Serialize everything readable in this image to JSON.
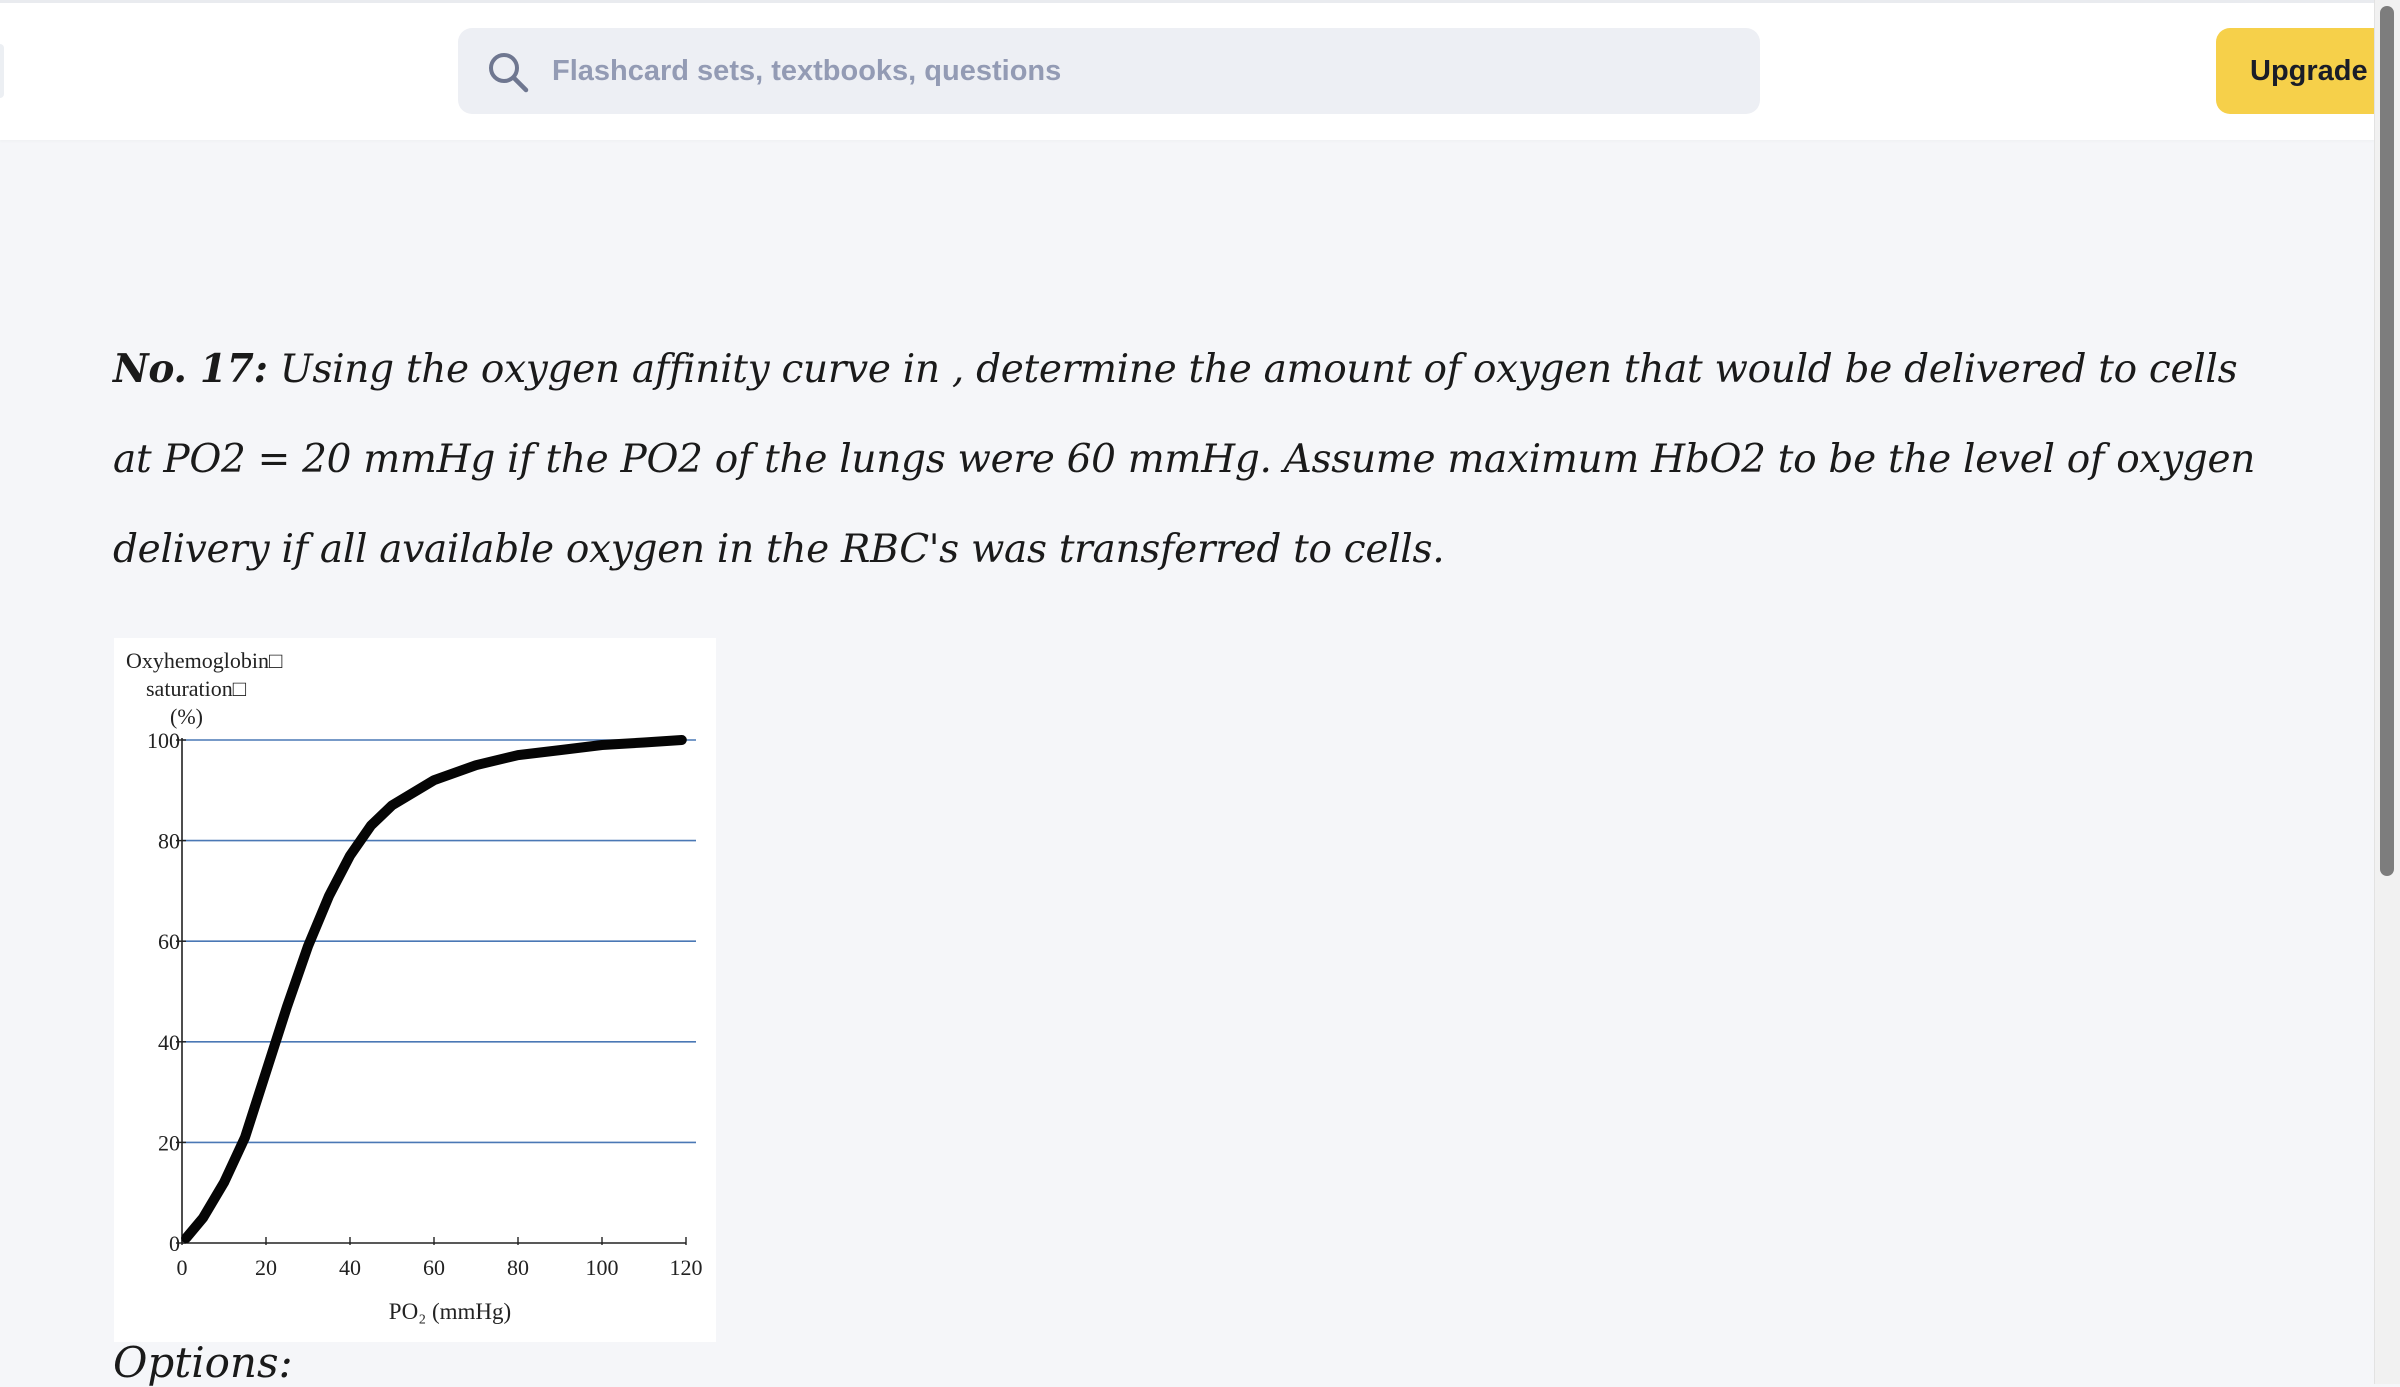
{
  "header": {
    "search": {
      "placeholder": "Flashcard sets, textbooks, questions",
      "icon": "search-icon"
    },
    "upgrade_label": "Upgrade",
    "upgrade_color": "#f6d04a"
  },
  "question": {
    "number_label": "No. 17:",
    "text": "Using the oxygen affinity curve in , determine the amount of oxygen that would be delivered to cells at PO2 = 20 mmHg if the PO2 of the lungs were 60 mmHg. Assume maximum HbO2 to be the level of oxygen delivery if all available oxygen in the RBC's was transferred to cells."
  },
  "options_label": "Options:",
  "chart_data": {
    "type": "line",
    "ylabel_lines": [
      "Oxyhemoglobin□",
      "saturation□",
      "(%)"
    ],
    "xlabel": "PO₂ (mmHg)",
    "x_ticks": [
      0,
      20,
      40,
      60,
      80,
      100,
      120
    ],
    "y_ticks": [
      0,
      20,
      40,
      60,
      80,
      100
    ],
    "xlim": [
      0,
      120
    ],
    "ylim": [
      0,
      100
    ],
    "grid": "horizontal",
    "grid_color": "#4a78b5",
    "series": [
      {
        "x": [
          1,
          5,
          10,
          15,
          20,
          25,
          30,
          35,
          40,
          45,
          50,
          60,
          70,
          80,
          90,
          100,
          110,
          119
        ],
        "y": [
          1,
          5,
          12,
          21,
          34,
          47,
          59,
          69,
          77,
          83,
          87,
          92,
          95,
          97,
          98,
          99,
          99.5,
          100
        ]
      }
    ]
  }
}
